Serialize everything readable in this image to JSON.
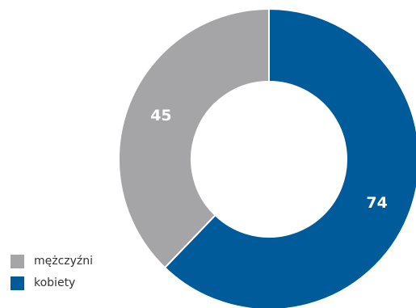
{
  "chart_data": {
    "type": "pie",
    "donut": true,
    "categories": [
      "mężczyźni",
      "kobiety"
    ],
    "values": [
      45,
      74
    ],
    "colors": [
      "#a5a5a7",
      "#005b9a"
    ],
    "legend_placement": "bottom-left",
    "data_labels": [
      "45",
      "74"
    ]
  }
}
